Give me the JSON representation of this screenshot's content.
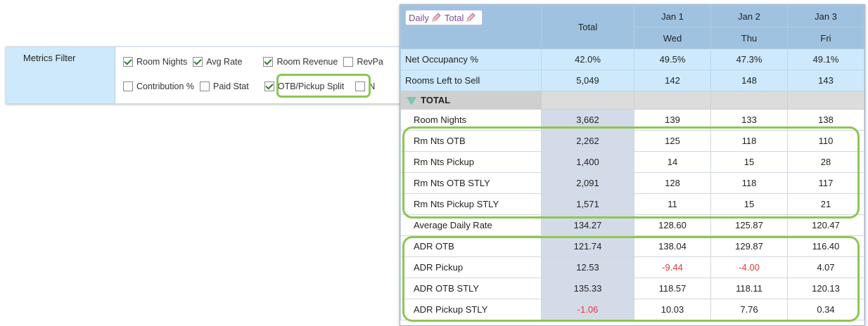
{
  "filter": {
    "label": "Metrics Filter",
    "row1": [
      {
        "label": "Room Nights",
        "checked": true
      },
      {
        "label": "Avg Rate",
        "checked": true
      },
      {
        "label": "Room Revenue",
        "checked": true
      },
      {
        "label": "RevPa",
        "checked": false
      }
    ],
    "row2": [
      {
        "label": "Contribution %",
        "checked": false
      },
      {
        "label": "Paid Stat",
        "checked": false
      },
      {
        "label": "OTB/Pickup Split",
        "checked": true
      },
      {
        "label": "N",
        "checked": false
      }
    ]
  },
  "grid": {
    "tabs": [
      "Daily",
      "Total"
    ],
    "total_header": "Total",
    "dates": [
      "Jan 1",
      "Jan 2",
      "Jan 3"
    ],
    "weekdays": [
      "Wed",
      "Thu",
      "Fri"
    ],
    "kpi_rows": [
      {
        "label": "Net Occupancy %",
        "total": "42.0%",
        "values": [
          "49.5%",
          "47.3%",
          "49.1%"
        ]
      },
      {
        "label": "Rooms Left to Sell",
        "total": "5,049",
        "values": [
          "142",
          "148",
          "143"
        ]
      }
    ],
    "section_label": "TOTAL",
    "rows": [
      {
        "label": "Room Nights",
        "total": "3,662",
        "values": [
          "139",
          "133",
          "138"
        ]
      },
      {
        "label": "Rm Nts OTB",
        "total": "2,262",
        "values": [
          "125",
          "118",
          "110"
        ]
      },
      {
        "label": "Rm Nts Pickup",
        "total": "1,400",
        "values": [
          "14",
          "15",
          "28"
        ]
      },
      {
        "label": "Rm Nts OTB STLY",
        "total": "2,091",
        "values": [
          "128",
          "118",
          "117"
        ]
      },
      {
        "label": "Rm Nts Pickup STLY",
        "total": "1,571",
        "values": [
          "11",
          "15",
          "21"
        ]
      },
      {
        "label": "Average Daily Rate",
        "total": "134.27",
        "values": [
          "128.60",
          "125.87",
          "120.47"
        ]
      },
      {
        "label": "ADR OTB",
        "total": "121.74",
        "values": [
          "138.04",
          "129.87",
          "116.40"
        ]
      },
      {
        "label": "ADR Pickup",
        "total": "12.53",
        "values": [
          "-9.44",
          "-4.00",
          "4.07"
        ]
      },
      {
        "label": "ADR OTB STLY",
        "total": "135.33",
        "values": [
          "118.57",
          "118.11",
          "120.13"
        ]
      },
      {
        "label": "ADR Pickup STLY",
        "total": "-1.06",
        "values": [
          "10.03",
          "7.76",
          "0.34"
        ]
      }
    ]
  },
  "colors": {
    "highlight": "#8cc653",
    "header_blue": "#9fc2e0",
    "kpi_blue": "#cde9fb",
    "total_col": "#d4dbe8",
    "negative": "#e53935"
  }
}
